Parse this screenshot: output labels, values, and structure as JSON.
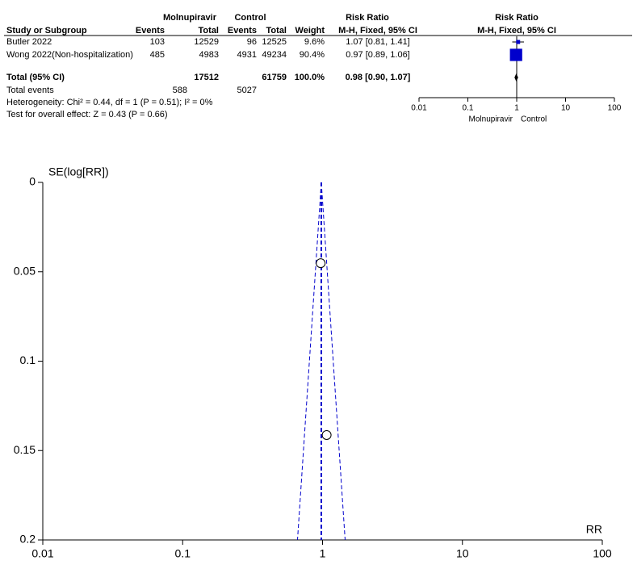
{
  "forest_table": {
    "group_headers": [
      "Molnupiravir",
      "Control",
      "Risk Ratio",
      "Risk Ratio"
    ],
    "columns": [
      "Study or Subgroup",
      "Events",
      "Total",
      "Events",
      "Total",
      "Weight",
      "M-H, Fixed, 95% CI",
      "M-H, Fixed, 95% CI"
    ],
    "rows": [
      [
        "Butler 2022",
        103,
        12529,
        96,
        12525,
        "9.6%",
        "1.07 [0.81, 1.41]"
      ],
      [
        "Wong 2022(Non-hospitalization)",
        485,
        4983,
        4931,
        49234,
        "90.4%",
        "0.97 [0.89, 1.06]"
      ]
    ],
    "total": [
      "Total (95% CI)",
      17512,
      61759,
      "100.0%",
      "0.98 [0.90, 1.07]"
    ],
    "total_events": [
      "Total events",
      588,
      5027
    ],
    "heterogeneity": "Heterogeneity: Chi² = 0.44, df = 1 (P = 0.51); I² = 0%",
    "overall_effect": "Test for overall effect: Z = 0.43 (P = 0.66)"
  },
  "chart_data": [
    {
      "type": "forest",
      "estimates": [
        1.07,
        0.97
      ],
      "ci_lower": [
        0.81,
        0.89
      ],
      "ci_upper": [
        1.41,
        1.06
      ],
      "weights": [
        9.6,
        90.4
      ],
      "pooled": {
        "value": 0.98,
        "lower": 0.9,
        "upper": 1.07
      },
      "xlim": [
        0.01,
        100
      ],
      "xticks": [
        0.01,
        0.1,
        1,
        10,
        100
      ],
      "log_x": true,
      "left_label": "Molnupiravir",
      "right_label": "Control",
      "color": "#0000cc"
    },
    {
      "type": "funnel",
      "y_label": "SE(log[RR])",
      "x_label": "RR",
      "x": [
        0.97,
        1.07
      ],
      "values": [
        0.0452,
        0.1413
      ],
      "xlim": [
        0.01,
        100
      ],
      "xticks": [
        0.01,
        0.1,
        1,
        10,
        100
      ],
      "log_x": true,
      "ylim": [
        0,
        0.2
      ],
      "yticks": [
        0,
        0.05,
        0.1,
        0.15,
        0.2
      ],
      "y_inverted": true,
      "pooled": 0.98,
      "line_color": "#0000cc"
    }
  ]
}
